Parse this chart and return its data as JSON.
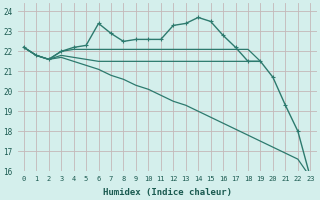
{
  "xlabel": "Humidex (Indice chaleur)",
  "background_color": "#d4efec",
  "grid_color": "#c4b8b8",
  "line_color": "#2d7a6e",
  "xlim": [
    -0.5,
    23.5
  ],
  "ylim": [
    16,
    24.4
  ],
  "yticks": [
    16,
    17,
    18,
    19,
    20,
    21,
    22,
    23,
    24
  ],
  "xticks": [
    0,
    1,
    2,
    3,
    4,
    5,
    6,
    7,
    8,
    9,
    10,
    11,
    12,
    13,
    14,
    15,
    16,
    17,
    18,
    19,
    20,
    21,
    22,
    23
  ],
  "series": [
    {
      "x": [
        0,
        1,
        2,
        3,
        4,
        5,
        6,
        7,
        8,
        9,
        10,
        11,
        12,
        13,
        14,
        15,
        16,
        17,
        18,
        19,
        20,
        21,
        22,
        23
      ],
      "y": [
        22.2,
        21.8,
        21.6,
        22.0,
        22.2,
        22.3,
        23.4,
        22.9,
        22.5,
        22.6,
        22.6,
        22.6,
        23.3,
        23.4,
        23.7,
        23.5,
        22.8,
        22.2,
        21.5,
        21.5,
        20.7,
        19.3,
        18.0,
        15.7
      ],
      "marker": "+",
      "linewidth": 1.0,
      "markersize": 3.5
    },
    {
      "x": [
        0,
        1,
        2,
        3,
        4,
        5,
        6,
        7,
        8,
        9,
        10,
        11,
        12,
        13,
        14,
        15,
        16,
        17,
        18,
        19
      ],
      "y": [
        22.2,
        21.8,
        21.6,
        22.0,
        22.1,
        22.1,
        22.1,
        22.1,
        22.1,
        22.1,
        22.1,
        22.1,
        22.1,
        22.1,
        22.1,
        22.1,
        22.1,
        22.1,
        22.1,
        21.5
      ],
      "marker": null,
      "linewidth": 0.9
    },
    {
      "x": [
        0,
        1,
        2,
        3,
        4,
        5,
        6,
        7,
        8,
        9,
        10,
        11,
        12,
        13,
        14,
        15,
        16,
        17,
        18,
        19
      ],
      "y": [
        22.2,
        21.8,
        21.6,
        21.8,
        21.7,
        21.6,
        21.5,
        21.5,
        21.5,
        21.5,
        21.5,
        21.5,
        21.5,
        21.5,
        21.5,
        21.5,
        21.5,
        21.5,
        21.5,
        21.5
      ],
      "marker": null,
      "linewidth": 0.9
    },
    {
      "x": [
        0,
        1,
        2,
        3,
        4,
        5,
        6,
        7,
        8,
        9,
        10,
        11,
        12,
        13,
        14,
        15,
        16,
        17,
        18,
        19,
        20,
        21,
        22,
        23
      ],
      "y": [
        22.2,
        21.8,
        21.6,
        21.7,
        21.5,
        21.3,
        21.1,
        20.8,
        20.6,
        20.3,
        20.1,
        19.8,
        19.5,
        19.3,
        19.0,
        18.7,
        18.4,
        18.1,
        17.8,
        17.5,
        17.2,
        16.9,
        16.6,
        15.7
      ],
      "marker": null,
      "linewidth": 0.9
    }
  ]
}
